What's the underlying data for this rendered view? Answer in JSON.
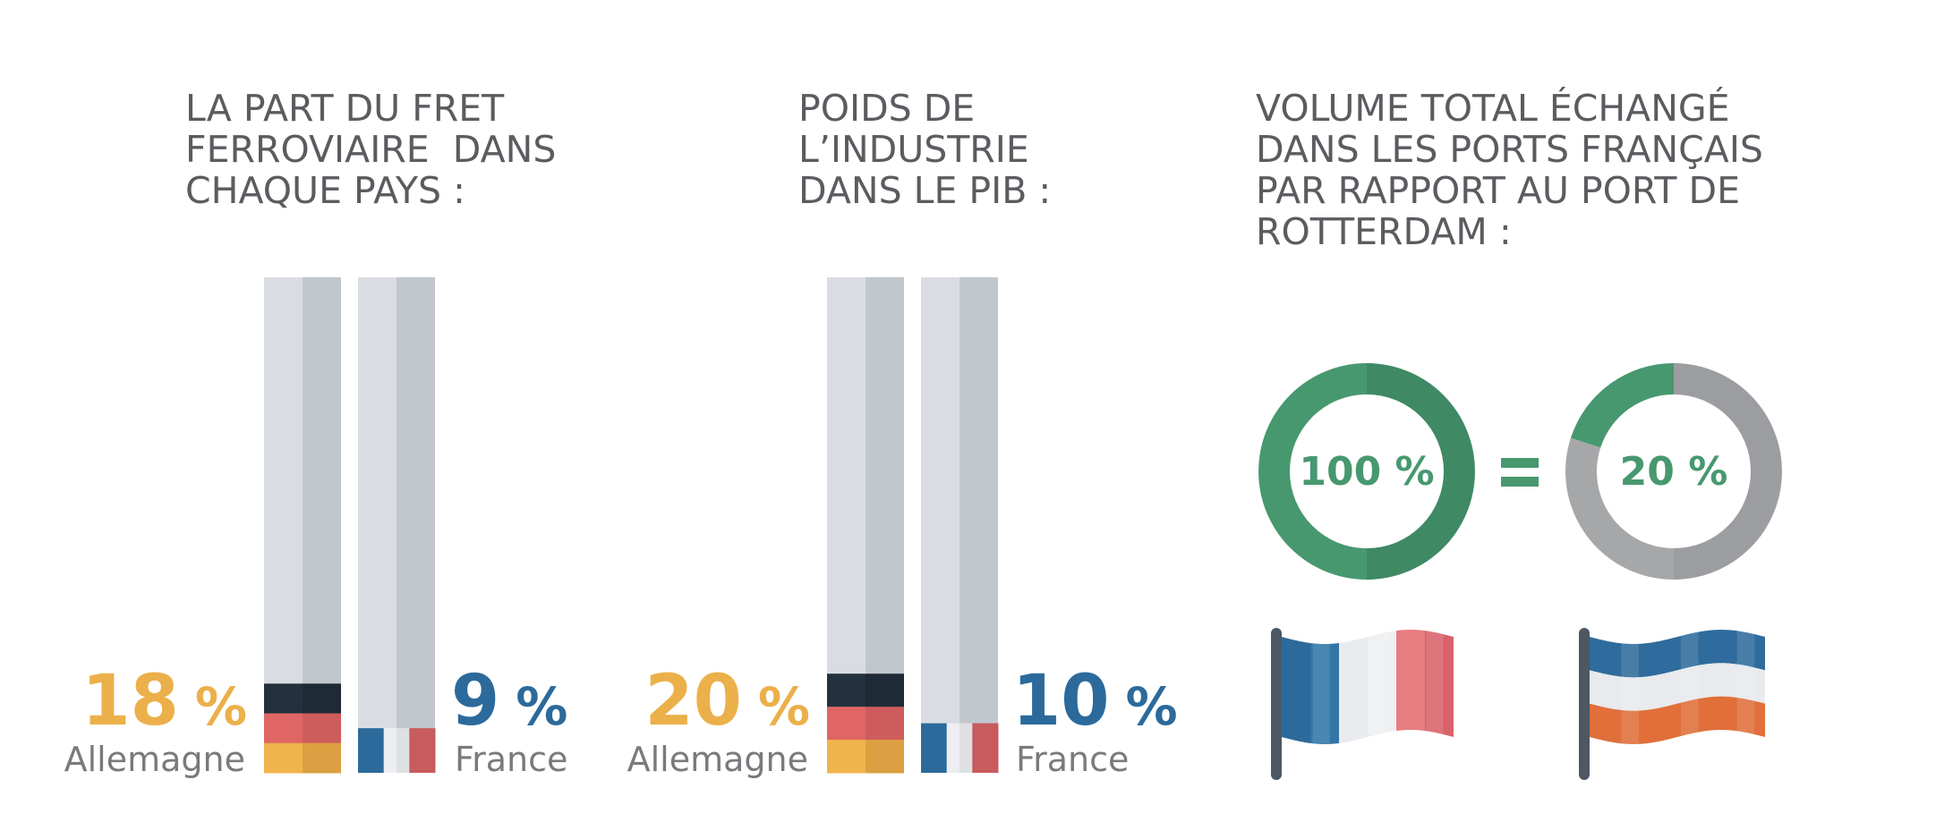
{
  "colors": {
    "title": "#5b5b60",
    "germany_accent": "#ebb04a",
    "france_accent": "#2c6a9b",
    "donut_green": "#47986f",
    "donut_grey": "#a6a7a9",
    "country_label": "#7a7a7e",
    "bar_track": "#d9dde3"
  },
  "chart_data": [
    {
      "type": "bar",
      "title_lines": [
        "LA PART DU FRET",
        "FERROVIAIRE  DANS",
        "CHAQUE PAYS :"
      ],
      "categories": [
        "Allemagne",
        "France"
      ],
      "values": [
        18,
        9
      ],
      "value_labels": [
        "18",
        "9"
      ],
      "unit": "%",
      "ylim": [
        0,
        100
      ],
      "flag_icons": [
        "germany-flag",
        "france-flag"
      ]
    },
    {
      "type": "bar",
      "title_lines": [
        "POIDS DE",
        "L’INDUSTRIE",
        "DANS LE PIB :"
      ],
      "categories": [
        "Allemagne",
        "France"
      ],
      "values": [
        20,
        10
      ],
      "value_labels": [
        "20",
        "10"
      ],
      "unit": "%",
      "ylim": [
        0,
        100
      ],
      "flag_icons": [
        "germany-flag",
        "france-flag"
      ]
    },
    {
      "type": "pie",
      "title_lines": [
        "VOLUME TOTAL ÉCHANGÉ",
        "DANS LES PORTS FRANÇAIS",
        "PAR RAPPORT AU PORT DE",
        "ROTTERDAM :"
      ],
      "slices": [
        {
          "label": "100 %",
          "value": 100,
          "icon": "france-flag"
        },
        {
          "label": "20 %",
          "value": 20,
          "icon": "netherlands-flag"
        }
      ],
      "separator": "="
    }
  ]
}
